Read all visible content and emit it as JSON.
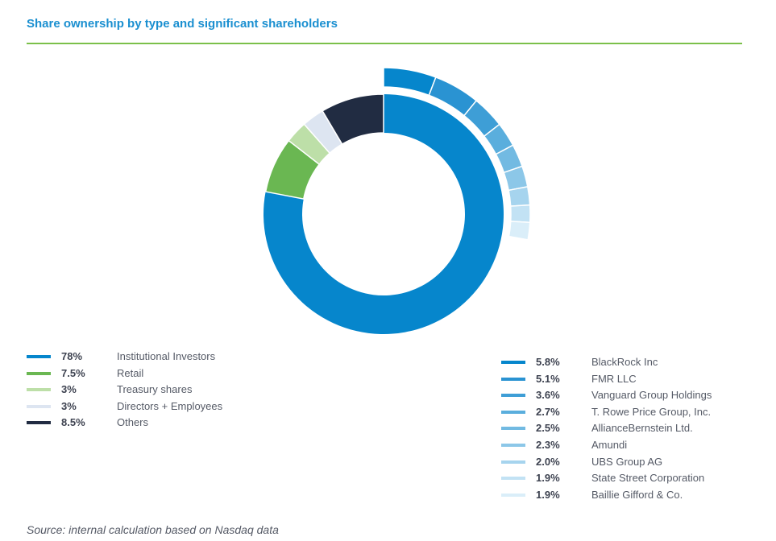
{
  "title": "Share ownership by type and significant shareholders",
  "source": "Source: internal calculation based on Nasdaq data",
  "chart_data": {
    "type": "pie",
    "ownership_by_type": [
      {
        "value": 78,
        "pct_label": "78%",
        "label": "Institutional Investors",
        "color": "#0686cc"
      },
      {
        "value": 7.5,
        "pct_label": "7.5%",
        "label": "Retail",
        "color": "#6ab752"
      },
      {
        "value": 3,
        "pct_label": "3%",
        "label": "Treasury shares",
        "color": "#bddfa8"
      },
      {
        "value": 3,
        "pct_label": "3%",
        "label": "Directors + Employees",
        "color": "#dde5f1"
      },
      {
        "value": 8.5,
        "pct_label": "8.5%",
        "label": "Others",
        "color": "#212c42"
      }
    ],
    "significant_shareholders": [
      {
        "value": 5.8,
        "pct_label": "5.8%",
        "label": "BlackRock Inc",
        "color": "#0686cc"
      },
      {
        "value": 5.1,
        "pct_label": "5.1%",
        "label": "FMR LLC",
        "color": "#2a93d2"
      },
      {
        "value": 3.6,
        "pct_label": "3.6%",
        "label": "Vanguard Group Holdings",
        "color": "#3e9ed6"
      },
      {
        "value": 2.7,
        "pct_label": "2.7%",
        "label": "T. Rowe Price Group, Inc.",
        "color": "#5aaedd"
      },
      {
        "value": 2.5,
        "pct_label": "2.5%",
        "label": "AllianceBernstein Ltd.",
        "color": "#72bae2"
      },
      {
        "value": 2.3,
        "pct_label": "2.3%",
        "label": "Amundi",
        "color": "#8cc7e8"
      },
      {
        "value": 2.0,
        "pct_label": "2.0%",
        "label": "UBS Group AG",
        "color": "#a6d4ee"
      },
      {
        "value": 1.9,
        "pct_label": "1.9%",
        "label": "State Street Corporation",
        "color": "#c2e2f4"
      },
      {
        "value": 1.9,
        "pct_label": "1.9%",
        "label": "Baillie Gifford & Co.",
        "color": "#daeef9"
      }
    ]
  }
}
